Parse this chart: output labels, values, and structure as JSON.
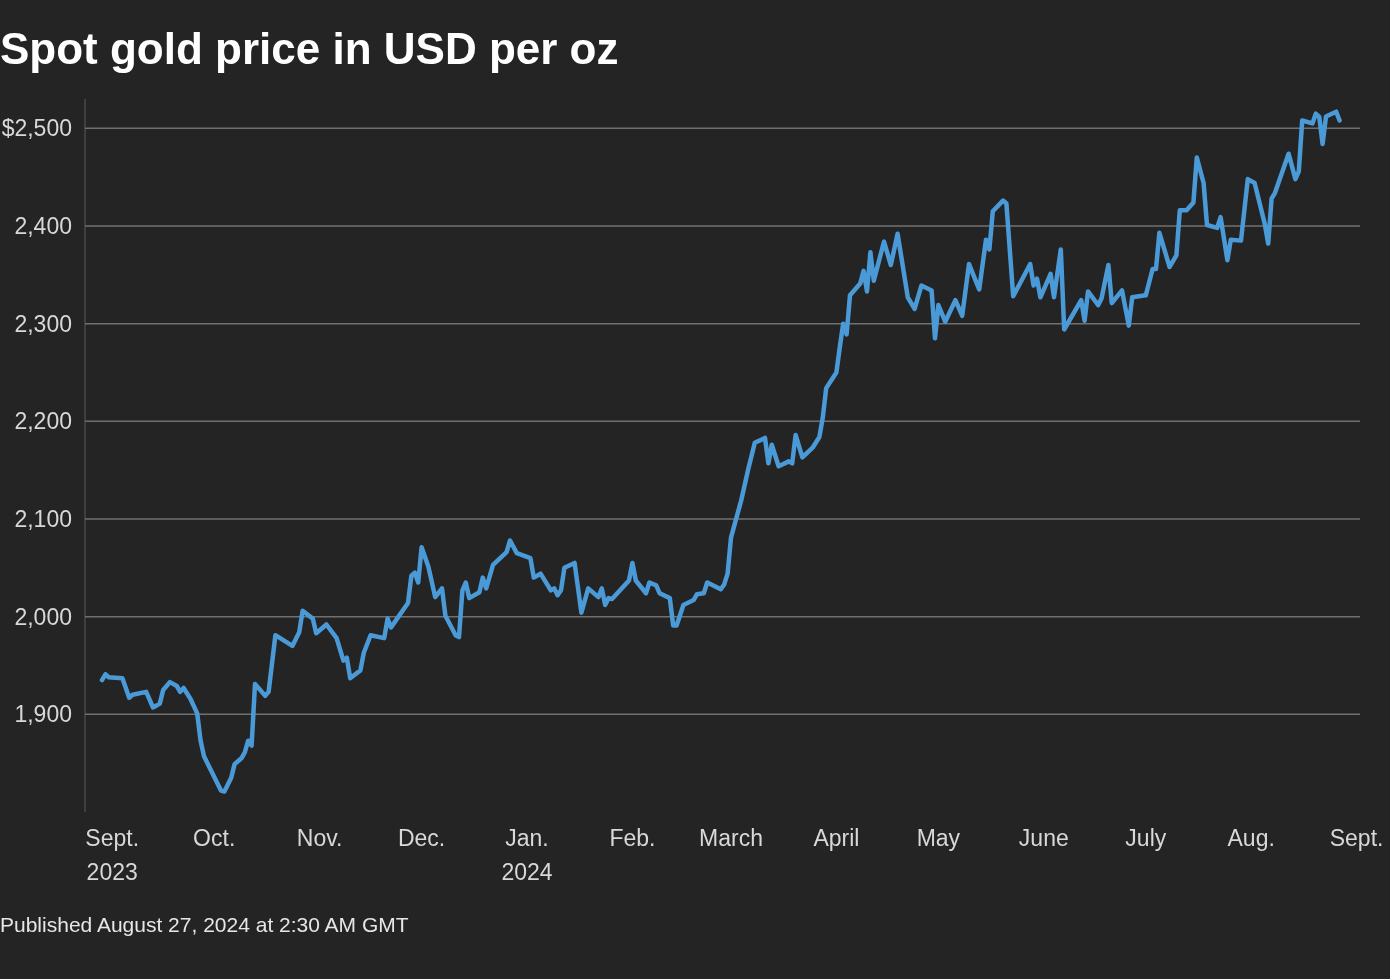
{
  "chart_data": {
    "type": "line",
    "title": "Spot gold price in USD per oz",
    "annotations": [
      "Published August 27, 2024 at 2:30 AM GMT"
    ],
    "series": [
      {
        "color": "#4b9ad8",
        "x": [
          "2023-08-29",
          "2023-08-30",
          "2023-08-31",
          "2023-09-04",
          "2023-09-06",
          "2023-09-07",
          "2023-09-11",
          "2023-09-13",
          "2023-09-15",
          "2023-09-16",
          "2023-09-18",
          "2023-09-20",
          "2023-09-21",
          "2023-09-22",
          "2023-09-24",
          "2023-09-26",
          "2023-09-27",
          "2023-09-28",
          "2023-09-30",
          "2023-10-02",
          "2023-10-03",
          "2023-10-04",
          "2023-10-06",
          "2023-10-07",
          "2023-10-09",
          "2023-10-10",
          "2023-10-11",
          "2023-10-12",
          "2023-10-13",
          "2023-10-16",
          "2023-10-17",
          "2023-10-19",
          "2023-10-24",
          "2023-10-26",
          "2023-10-27",
          "2023-10-30",
          "2023-10-31",
          "2023-11-03",
          "2023-11-06",
          "2023-11-08",
          "2023-11-09",
          "2023-11-10",
          "2023-11-13",
          "2023-11-14",
          "2023-11-16",
          "2023-11-20",
          "2023-11-21",
          "2023-11-22",
          "2023-11-24",
          "2023-11-27",
          "2023-11-28",
          "2023-11-29",
          "2023-11-30",
          "2023-12-01",
          "2023-12-03",
          "2023-12-05",
          "2023-12-07",
          "2023-12-08",
          "2023-12-11",
          "2023-12-12",
          "2023-12-13",
          "2023-12-14",
          "2023-12-15",
          "2023-12-18",
          "2023-12-19",
          "2023-12-20",
          "2023-12-22",
          "2023-12-26",
          "2023-12-27",
          "2023-12-29",
          "2024-01-02",
          "2024-01-03",
          "2024-01-05",
          "2024-01-08",
          "2024-01-09",
          "2024-01-10",
          "2024-01-11",
          "2024-01-12",
          "2024-01-15",
          "2024-01-17",
          "2024-01-19",
          "2024-01-22",
          "2024-01-23",
          "2024-01-24",
          "2024-01-25",
          "2024-01-26",
          "2024-01-31",
          "2024-02-01",
          "2024-02-02",
          "2024-02-05",
          "2024-02-06",
          "2024-02-08",
          "2024-02-09",
          "2024-02-12",
          "2024-02-13",
          "2024-02-14",
          "2024-02-16",
          "2024-02-19",
          "2024-02-20",
          "2024-02-22",
          "2024-02-23",
          "2024-02-27",
          "2024-02-28",
          "2024-02-29",
          "2024-03-01",
          "2024-03-04",
          "2024-03-06",
          "2024-03-08",
          "2024-03-11",
          "2024-03-12",
          "2024-03-13",
          "2024-03-15",
          "2024-03-18",
          "2024-03-19",
          "2024-03-20",
          "2024-03-22",
          "2024-03-25",
          "2024-03-27",
          "2024-03-28",
          "2024-03-29",
          "2024-04-01",
          "2024-04-02",
          "2024-04-03",
          "2024-04-04",
          "2024-04-05",
          "2024-04-08",
          "2024-04-09",
          "2024-04-10",
          "2024-04-11",
          "2024-04-12",
          "2024-04-15",
          "2024-04-17",
          "2024-04-19",
          "2024-04-22",
          "2024-04-24",
          "2024-04-26",
          "2024-04-29",
          "2024-04-30",
          "2024-05-01",
          "2024-05-03",
          "2024-05-06",
          "2024-05-08",
          "2024-05-10",
          "2024-05-13",
          "2024-05-15",
          "2024-05-16",
          "2024-05-17",
          "2024-05-20",
          "2024-05-21",
          "2024-05-23",
          "2024-05-28",
          "2024-05-29",
          "2024-05-30",
          "2024-05-31",
          "2024-06-03",
          "2024-06-04",
          "2024-06-06",
          "2024-06-07",
          "2024-06-12",
          "2024-06-13",
          "2024-06-14",
          "2024-06-17",
          "2024-06-18",
          "2024-06-20",
          "2024-06-21",
          "2024-06-24",
          "2024-06-26",
          "2024-06-27",
          "2024-07-01",
          "2024-07-03",
          "2024-07-04",
          "2024-07-05",
          "2024-07-08",
          "2024-07-10",
          "2024-07-11",
          "2024-07-13",
          "2024-07-15",
          "2024-07-16",
          "2024-07-18",
          "2024-07-19",
          "2024-07-22",
          "2024-07-23",
          "2024-07-25",
          "2024-07-26",
          "2024-07-29",
          "2024-07-31",
          "2024-08-02",
          "2024-08-05",
          "2024-08-06",
          "2024-08-07",
          "2024-08-08",
          "2024-08-12",
          "2024-08-14",
          "2024-08-15",
          "2024-08-16",
          "2024-08-19",
          "2024-08-20",
          "2024-08-21",
          "2024-08-22",
          "2024-08-23",
          "2024-08-26",
          "2024-08-27"
        ],
        "values": [
          1935,
          1941,
          1938,
          1937,
          1917,
          1920,
          1923,
          1907,
          1911,
          1925,
          1933,
          1929,
          1923,
          1927,
          1916,
          1901,
          1873,
          1857,
          1843,
          1829,
          1822,
          1821,
          1835,
          1849,
          1855,
          1861,
          1873,
          1868,
          1931,
          1919,
          1923,
          1981,
          1970,
          1984,
          2006,
          1998,
          1983,
          1992,
          1978,
          1955,
          1958,
          1937,
          1945,
          1963,
          1981,
          1978,
          1998,
          1989,
          1999,
          2014,
          2042,
          2045,
          2035,
          2071,
          2051,
          2020,
          2029,
          2001,
          1981,
          1979,
          2027,
          2035,
          2019,
          2025,
          2040,
          2029,
          2053,
          2066,
          2078,
          2065,
          2060,
          2040,
          2044,
          2027,
          2029,
          2022,
          2027,
          2050,
          2055,
          2004,
          2029,
          2020,
          2029,
          2012,
          2019,
          2018,
          2037,
          2055,
          2037,
          2024,
          2035,
          2032,
          2024,
          2019,
          1991,
          1991,
          2012,
          2017,
          2023,
          2024,
          2035,
          2028,
          2033,
          2044,
          2081,
          2119,
          2150,
          2178,
          2183,
          2157,
          2176,
          2154,
          2159,
          2157,
          2186,
          2163,
          2173,
          2184,
          2204,
          2234,
          2250,
          2276,
          2300,
          2289,
          2329,
          2341,
          2354,
          2333,
          2373,
          2344,
          2384,
          2360,
          2392,
          2327,
          2315,
          2339,
          2334,
          2285,
          2319,
          2302,
          2324,
          2308,
          2361,
          2335,
          2386,
          2376,
          2415,
          2426,
          2423,
          2328,
          2361,
          2339,
          2346,
          2327,
          2351,
          2327,
          2376,
          2294,
          2324,
          2303,
          2333,
          2319,
          2326,
          2360,
          2321,
          2334,
          2298,
          2327,
          2329,
          2356,
          2356,
          2393,
          2358,
          2370,
          2416,
          2416,
          2424,
          2470,
          2444,
          2401,
          2398,
          2409,
          2365,
          2386,
          2385,
          2448,
          2444,
          2402,
          2382,
          2428,
          2434,
          2474,
          2448,
          2456,
          2508,
          2505,
          2515,
          2512,
          2484,
          2512,
          2517,
          2508
        ]
      }
    ],
    "xlim": [
      "2023-08-24",
      "2024-09-02"
    ],
    "xticks": [
      {
        "value": "2023-09-01",
        "label": "Sept.\n2023"
      },
      {
        "value": "2023-10-01",
        "label": "Oct."
      },
      {
        "value": "2023-11-01",
        "label": "Nov."
      },
      {
        "value": "2023-12-01",
        "label": "Dec."
      },
      {
        "value": "2024-01-01",
        "label": "Jan.\n2024"
      },
      {
        "value": "2024-02-01",
        "label": "Feb."
      },
      {
        "value": "2024-03-01",
        "label": "March"
      },
      {
        "value": "2024-04-01",
        "label": "April"
      },
      {
        "value": "2024-05-01",
        "label": "May"
      },
      {
        "value": "2024-06-01",
        "label": "June"
      },
      {
        "value": "2024-07-01",
        "label": "July"
      },
      {
        "value": "2024-08-01",
        "label": "Aug."
      },
      {
        "value": "2024-09-01",
        "label": "Sept."
      }
    ],
    "ylim": [
      1800,
      2530
    ],
    "yticks": [
      {
        "value": 1900,
        "label": "1,900"
      },
      {
        "value": 2000,
        "label": "2,000"
      },
      {
        "value": 2100,
        "label": "2,100"
      },
      {
        "value": 2200,
        "label": "2,200"
      },
      {
        "value": 2300,
        "label": "2,300"
      },
      {
        "value": 2400,
        "label": "2,400"
      },
      {
        "value": 2500,
        "label": "$2,500"
      }
    ],
    "grid": "y",
    "line_style": "solid",
    "marker": "none"
  }
}
